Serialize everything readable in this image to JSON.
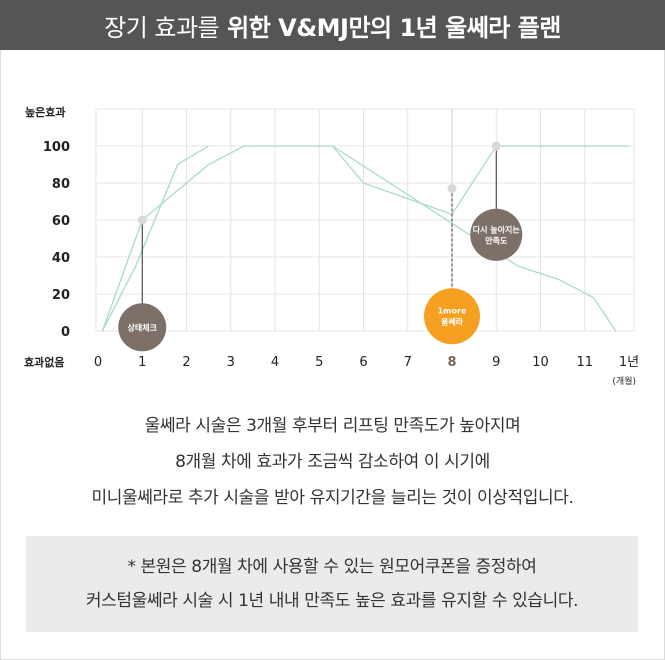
{
  "header": {
    "title_normal": "장기 효과를",
    "title_bold": "위한 V&MJ만의 1년 울쎄라 플랜"
  },
  "chart_data": {
    "type": "line",
    "ylabel": "높은효과",
    "y_bottom_label": "효과없음",
    "x_unit": "(개월)",
    "x_ticks": [
      {
        "value": 0,
        "label": "0"
      },
      {
        "value": 1,
        "label": "1"
      },
      {
        "value": 2,
        "label": "2"
      },
      {
        "value": 3,
        "label": "3"
      },
      {
        "value": 4,
        "label": "4"
      },
      {
        "value": 5,
        "label": "5"
      },
      {
        "value": 6,
        "label": "6"
      },
      {
        "value": 7,
        "label": "7"
      },
      {
        "value": 8,
        "label": "8",
        "highlight": true
      },
      {
        "value": 9,
        "label": "9"
      },
      {
        "value": 10,
        "label": "10"
      },
      {
        "value": 11,
        "label": "11"
      },
      {
        "value": 12,
        "label": "1년"
      }
    ],
    "y_ticks": [
      0,
      20,
      40,
      60,
      80,
      100
    ],
    "xlim": [
      0,
      12
    ],
    "ylim": [
      0,
      100
    ],
    "grid": true,
    "series": [
      {
        "x": [
          0.1,
          0.85,
          1.8,
          2.5
        ],
        "y": [
          0,
          35,
          90,
          100
        ]
      },
      {
        "x": [
          0.1,
          1.0,
          2.5,
          3.3,
          5.3,
          6.0,
          8.0,
          9.0,
          12.0
        ],
        "y": [
          0,
          60,
          90,
          100,
          100,
          80,
          63,
          100,
          100
        ]
      },
      {
        "x": [
          5.3,
          9.5,
          10.4,
          11.2,
          11.7
        ],
        "y": [
          100,
          35,
          28,
          18,
          0
        ]
      }
    ],
    "markers": [
      {
        "x": 1.0,
        "y": 60,
        "bubble_y": 2,
        "lines": [
          "상태체크"
        ],
        "color": "#7d7069",
        "radius": 24
      },
      {
        "x": 8.0,
        "y": 77,
        "bubble_y": 8,
        "lines": [
          "1more",
          "울쎄라"
        ],
        "color": "#f5a020",
        "radius": 28
      },
      {
        "x": 9.0,
        "y": 100,
        "bubble_y": 52,
        "lines": [
          "다시 높아지는",
          "만족도"
        ],
        "color": "#7d7069",
        "radius": 26
      }
    ],
    "colors": {
      "line": "#a8dcc4",
      "grid": "#e4e4e4",
      "dot": "#d9d9d9",
      "stem": "#333333",
      "axis_text": "#222222",
      "highlight_tick": "#7a6655"
    }
  },
  "description": {
    "line1": "울쎄라 시술은 3개월 후부터 리프팅 만족도가 높아지며",
    "line2": "8개월 차에 효과가 조금씩 감소하여 이 시기에",
    "line3": "미니울쎄라로 추가 시술을 받아 유지기간을 늘리는 것이 이상적입니다."
  },
  "note": {
    "line1": "* 본원은 8개월 차에 사용할 수 있는 원모어쿠폰을 증정하여",
    "line2": "커스텀울쎄라 시술 시 1년 내내 만족도 높은 효과를 유지할 수 있습니다."
  }
}
